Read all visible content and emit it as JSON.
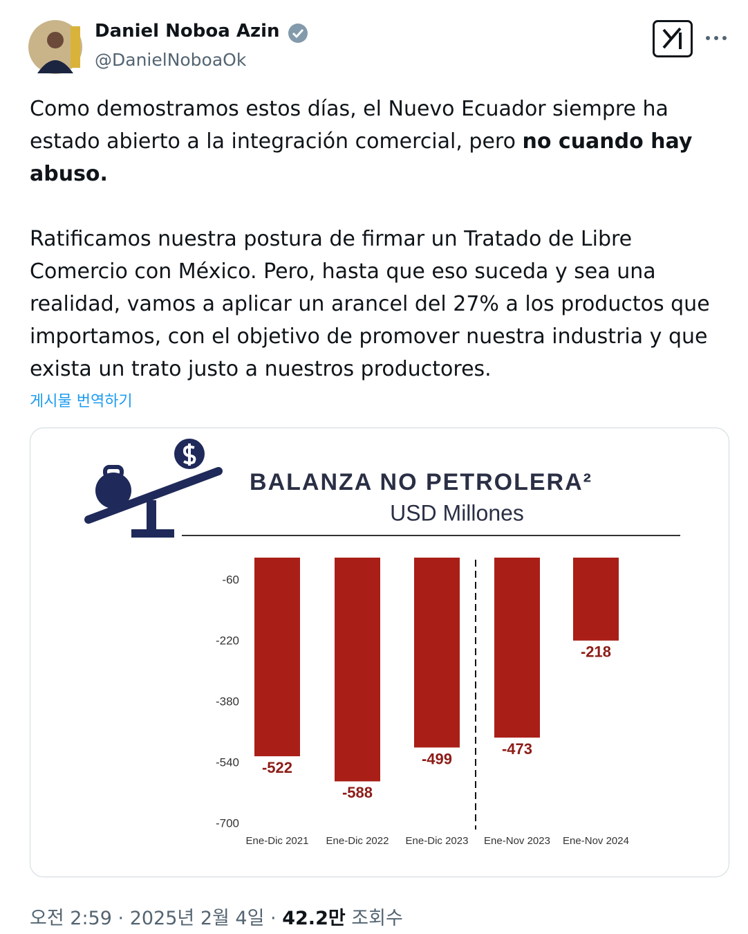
{
  "header": {
    "name": "Daniel Noboa Azin",
    "handle": "@DanielNoboaOk"
  },
  "text": {
    "p1": "Como demostramos estos días, el Nuevo Ecuador siempre ha estado abierto a la integración comercial, pero ",
    "p1_bold": "no cuando hay abuso.",
    "p2": "Ratificamos nuestra postura de firmar un Tratado de Libre Comercio con México. Pero, hasta que eso suceda y sea una realidad, vamos a aplicar un arancel del 27% a los productos que importamos, con el objetivo de promover nuestra industria y que exista un trato justo a nuestros productores."
  },
  "translate": "게시물 번역하기",
  "chart_data": {
    "type": "bar",
    "title": "BALANZA NO PETROLERA²",
    "subtitle": "USD Millones",
    "categories": [
      "Ene-Dic 2021",
      "Ene-Dic 2022",
      "Ene-Dic 2023",
      "Ene-Nov 2023",
      "Ene-Nov 2024"
    ],
    "values": [
      -522,
      -588,
      -499,
      -473,
      -218
    ],
    "color": "#a91f17",
    "ylim": [
      -700,
      0
    ],
    "yticks": [
      -60,
      -220,
      -380,
      -540,
      -700
    ]
  },
  "footer": {
    "time": "오전 2:59",
    "separator": "·",
    "date": "2025년 2월 4일",
    "views": "42.2만",
    "views_label": "조회수"
  }
}
